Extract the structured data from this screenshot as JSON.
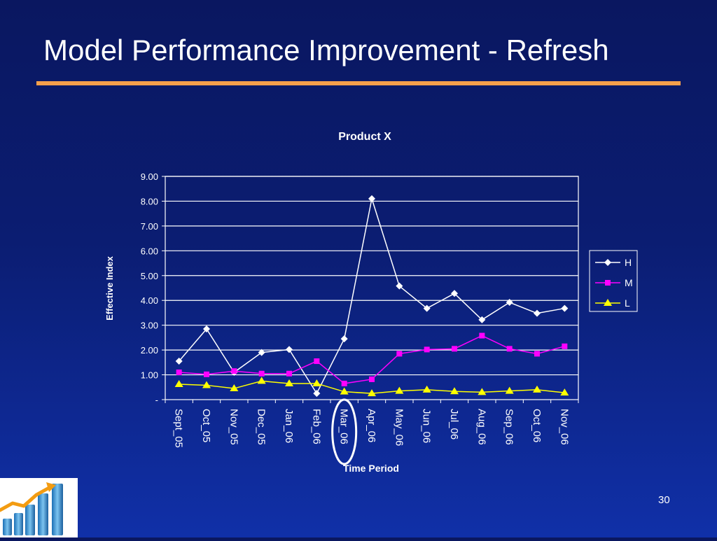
{
  "slide": {
    "title": "Model Performance Improvement - Refresh",
    "page_number": "30"
  },
  "colors": {
    "background": "#0b1d72",
    "title_rule": "#f5a04b",
    "grid": "#ffffff",
    "series_H": "#ffffff",
    "series_M": "#ff00ff",
    "series_L": "#ffff00",
    "highlight_circle": "#ffffff"
  },
  "chart_data": {
    "type": "line",
    "title": "Product X",
    "xlabel": "Time Period",
    "ylabel": "Effective Index",
    "ylim": [
      0,
      9
    ],
    "ytick_values": [
      0,
      1,
      2,
      3,
      4,
      5,
      6,
      7,
      8,
      9
    ],
    "ytick_labels": [
      "-",
      "1.00",
      "2.00",
      "3.00",
      "4.00",
      "5.00",
      "6.00",
      "7.00",
      "8.00",
      "9.00"
    ],
    "categories": [
      "Sept_05",
      "Oct_05",
      "Nov_05",
      "Dec_05",
      "Jan_06",
      "Feb_06",
      "Mar_06",
      "Apr_06",
      "May_06",
      "Jun_06",
      "Jul_06",
      "Aug_06",
      "Sep_06",
      "Oct_06",
      "Nov_06"
    ],
    "highlighted_category": "Mar_06",
    "grid": true,
    "legend_position": "right",
    "series": [
      {
        "name": "H",
        "marker": "diamond",
        "color": "#ffffff",
        "values": [
          1.55,
          2.85,
          1.1,
          1.9,
          2.02,
          0.25,
          2.45,
          8.1,
          4.58,
          3.68,
          4.28,
          3.22,
          3.92,
          3.48,
          3.68
        ]
      },
      {
        "name": "M",
        "marker": "square",
        "color": "#ff00ff",
        "values": [
          1.1,
          1.02,
          1.15,
          1.05,
          1.05,
          1.55,
          0.65,
          0.82,
          1.85,
          2.02,
          2.05,
          2.58,
          2.05,
          1.85,
          2.15
        ]
      },
      {
        "name": "L",
        "marker": "triangle",
        "color": "#ffff00",
        "values": [
          0.62,
          0.58,
          0.45,
          0.75,
          0.65,
          0.65,
          0.32,
          0.25,
          0.35,
          0.4,
          0.33,
          0.3,
          0.35,
          0.4,
          0.28
        ]
      }
    ]
  }
}
